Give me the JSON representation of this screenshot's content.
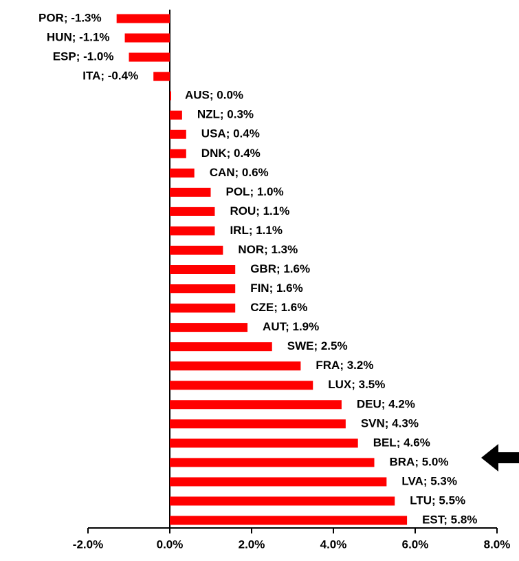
{
  "chart_data": {
    "type": "bar",
    "orientation": "horizontal",
    "color": "#ff0000",
    "values": [
      -1.3,
      -1.1,
      -1.0,
      -0.4,
      0.0,
      0.3,
      0.4,
      0.4,
      0.6,
      1.0,
      1.1,
      1.1,
      1.3,
      1.6,
      1.6,
      1.6,
      1.9,
      2.5,
      3.2,
      3.5,
      4.2,
      4.3,
      4.6,
      5.0,
      5.3,
      5.5,
      5.8
    ],
    "value_labels": [
      "POR; -1.3%",
      "HUN; -1.1%",
      "ESP; -1.0%",
      "ITA; -0.4%",
      "AUS; 0.0%",
      "NZL; 0.3%",
      "USA; 0.4%",
      "DNK; 0.4%",
      "CAN; 0.6%",
      "POL; 1.0%",
      "ROU; 1.1%",
      "IRL; 1.1%",
      "NOR; 1.3%",
      "GBR; 1.6%",
      "FIN; 1.6%",
      "CZE; 1.6%",
      "AUT; 1.9%",
      "SWE; 2.5%",
      "FRA; 3.2%",
      "LUX; 3.5%",
      "DEU; 4.2%",
      "SVN; 4.3%",
      "BEL; 4.6%",
      "BRA; 5.0%",
      "LVA; 5.3%",
      "LTU; 5.5%",
      "EST; 5.8%"
    ],
    "xlim": [
      -2,
      8
    ],
    "xticks": [
      {
        "value": -2,
        "label": "-2.0%"
      },
      {
        "value": 0,
        "label": "0.0%"
      },
      {
        "value": 2,
        "label": "2.0%"
      },
      {
        "value": 4,
        "label": "4.0%"
      },
      {
        "value": 6,
        "label": "6.0%"
      },
      {
        "value": 8,
        "label": "8.0%"
      }
    ]
  }
}
